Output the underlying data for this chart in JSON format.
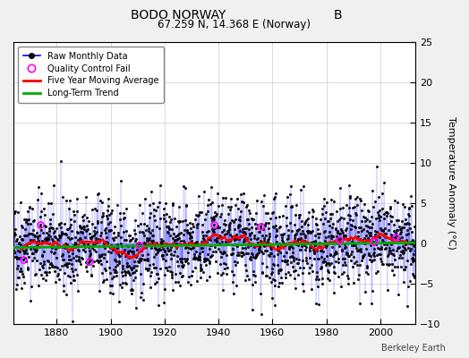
{
  "title_left": "BODO NORWAY",
  "title_right": "B",
  "subtitle": "67.259 N, 14.368 E (Norway)",
  "attribution": "Berkeley Earth",
  "ylabel": "Temperature Anomaly (°C)",
  "year_start": 1864,
  "year_end": 2013,
  "ylim": [
    -10,
    25
  ],
  "yticks": [
    -10,
    -5,
    0,
    5,
    10,
    15,
    20,
    25
  ],
  "xlim": [
    1864,
    2013
  ],
  "xticks": [
    1880,
    1900,
    1920,
    1940,
    1960,
    1980,
    2000
  ],
  "raw_line_color": "#4444ff",
  "raw_fill_color": "#aaaaff",
  "raw_marker_color": "#000000",
  "qc_color": "#ff00ff",
  "moving_avg_color": "#ff0000",
  "trend_color": "#00aa00",
  "background_color": "#f0f0f0",
  "plot_bg_color": "#ffffff",
  "grid_color": "#cccccc",
  "legend_line_color": "#0000ff",
  "seed": 42,
  "n_months": 1788,
  "trend_slope": 0.004,
  "trend_intercept": -0.5,
  "noise_std": 2.8,
  "qc_fail_indices": [
    45,
    120,
    340,
    560,
    890,
    1100,
    1450,
    1600,
    1700
  ]
}
